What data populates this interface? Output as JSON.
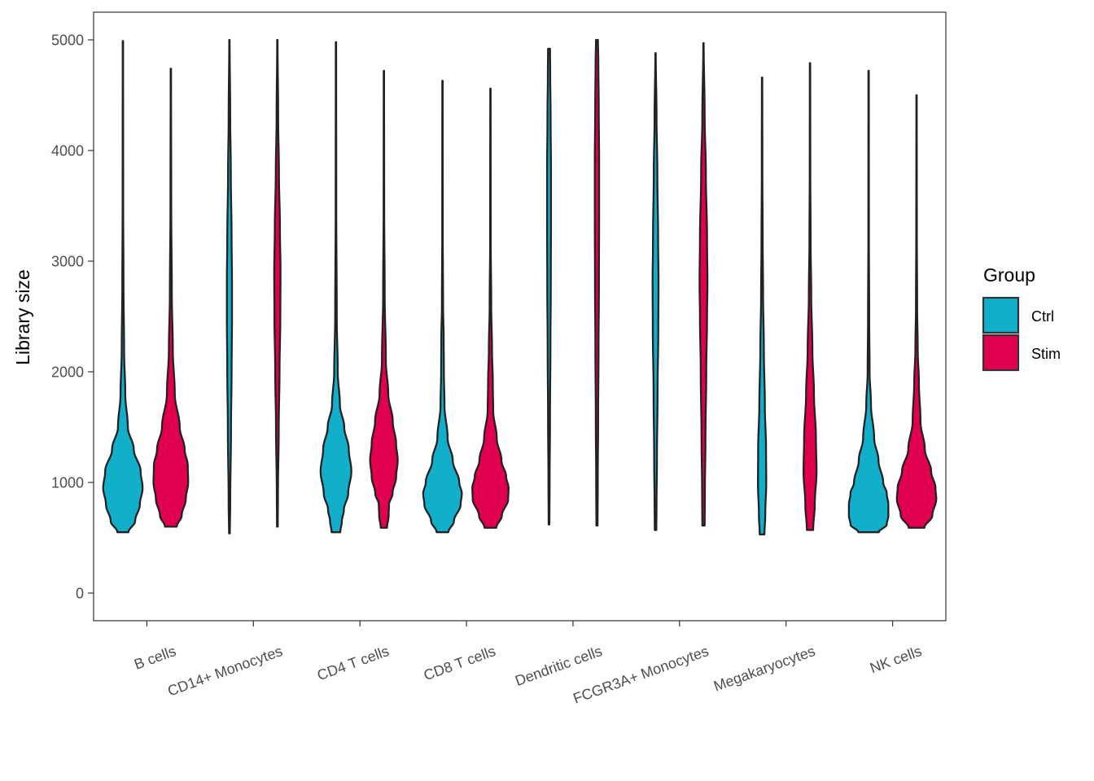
{
  "chart_data": {
    "type": "violin",
    "title": "",
    "xlabel": "",
    "ylabel": "Library size",
    "ylim": [
      -250,
      5250
    ],
    "yticks": [
      0,
      1000,
      2000,
      3000,
      4000,
      5000
    ],
    "grid": false,
    "legend": {
      "title": "Group",
      "position": "right",
      "entries": [
        "Ctrl",
        "Stim"
      ]
    },
    "colors": {
      "Ctrl": "#12afcb",
      "Stim": "#e0004f",
      "outline": "#222222"
    },
    "categories": [
      "B cells",
      "CD14+ Monocytes",
      "CD4 T cells",
      "CD8 T cells",
      "Dendritic cells",
      "FCGR3A+ Monocytes",
      "Megakaryocytes",
      "NK cells"
    ],
    "series": [
      {
        "name": "Ctrl",
        "violins": [
          {
            "min": 550,
            "max": 4990,
            "profile": [
              [
                550,
                0.28
              ],
              [
                650,
                0.62
              ],
              [
                800,
                0.86
              ],
              [
                950,
                1.0
              ],
              [
                1100,
                0.9
              ],
              [
                1300,
                0.55
              ],
              [
                1500,
                0.25
              ],
              [
                1800,
                0.12
              ],
              [
                2200,
                0.06
              ],
              [
                2800,
                0.03
              ],
              [
                3500,
                0.015
              ],
              [
                4990,
                0.01
              ]
            ]
          },
          {
            "min": 540,
            "max": 5000,
            "profile": [
              [
                540,
                0.02
              ],
              [
                800,
                0.04
              ],
              [
                1500,
                0.08
              ],
              [
                2000,
                0.11
              ],
              [
                2500,
                0.13
              ],
              [
                2800,
                0.13
              ],
              [
                3200,
                0.11
              ],
              [
                3800,
                0.07
              ],
              [
                4300,
                0.04
              ],
              [
                5000,
                0.01
              ]
            ]
          },
          {
            "min": 550,
            "max": 4980,
            "profile": [
              [
                550,
                0.22
              ],
              [
                650,
                0.3
              ],
              [
                750,
                0.4
              ],
              [
                900,
                0.62
              ],
              [
                1100,
                0.78
              ],
              [
                1300,
                0.65
              ],
              [
                1500,
                0.42
              ],
              [
                1700,
                0.2
              ],
              [
                2000,
                0.09
              ],
              [
                2500,
                0.04
              ],
              [
                3500,
                0.015
              ],
              [
                4980,
                0.01
              ]
            ]
          },
          {
            "min": 550,
            "max": 4630,
            "profile": [
              [
                550,
                0.3
              ],
              [
                650,
                0.58
              ],
              [
                800,
                0.92
              ],
              [
                900,
                0.98
              ],
              [
                1000,
                0.85
              ],
              [
                1200,
                0.52
              ],
              [
                1400,
                0.26
              ],
              [
                1700,
                0.1
              ],
              [
                2000,
                0.07
              ],
              [
                2300,
                0.06
              ],
              [
                2600,
                0.03
              ],
              [
                3200,
                0.015
              ],
              [
                4630,
                0.01
              ]
            ]
          },
          {
            "min": 620,
            "max": 4920,
            "profile": [
              [
                620,
                0.02
              ],
              [
                1000,
                0.03
              ],
              [
                1600,
                0.05
              ],
              [
                2200,
                0.07
              ],
              [
                2800,
                0.09
              ],
              [
                3400,
                0.1
              ],
              [
                3800,
                0.1
              ],
              [
                4300,
                0.08
              ],
              [
                4700,
                0.06
              ],
              [
                4920,
                0.05
              ]
            ]
          },
          {
            "min": 570,
            "max": 4880,
            "profile": [
              [
                570,
                0.04
              ],
              [
                800,
                0.05
              ],
              [
                1200,
                0.07
              ],
              [
                1800,
                0.1
              ],
              [
                2400,
                0.14
              ],
              [
                2800,
                0.15
              ],
              [
                3200,
                0.13
              ],
              [
                3800,
                0.09
              ],
              [
                4300,
                0.05
              ],
              [
                4880,
                0.01
              ]
            ]
          },
          {
            "min": 530,
            "max": 4660,
            "profile": [
              [
                530,
                0.12
              ],
              [
                700,
                0.16
              ],
              [
                1000,
                0.21
              ],
              [
                1300,
                0.2
              ],
              [
                1700,
                0.14
              ],
              [
                2200,
                0.09
              ],
              [
                2700,
                0.05
              ],
              [
                3200,
                0.03
              ],
              [
                3800,
                0.015
              ],
              [
                4660,
                0.01
              ]
            ]
          },
          {
            "min": 550,
            "max": 4720,
            "profile": [
              [
                550,
                0.52
              ],
              [
                620,
                0.92
              ],
              [
                700,
                1.0
              ],
              [
                800,
                1.0
              ],
              [
                900,
                0.92
              ],
              [
                1000,
                0.74
              ],
              [
                1200,
                0.5
              ],
              [
                1400,
                0.28
              ],
              [
                1700,
                0.12
              ],
              [
                2000,
                0.05
              ],
              [
                2500,
                0.03
              ],
              [
                3200,
                0.015
              ],
              [
                4720,
                0.01
              ]
            ]
          }
        ]
      },
      {
        "name": "Stim",
        "violins": [
          {
            "min": 600,
            "max": 4740,
            "profile": [
              [
                600,
                0.3
              ],
              [
                700,
                0.55
              ],
              [
                850,
                0.76
              ],
              [
                1000,
                0.88
              ],
              [
                1150,
                0.86
              ],
              [
                1300,
                0.7
              ],
              [
                1500,
                0.45
              ],
              [
                1800,
                0.2
              ],
              [
                2200,
                0.1
              ],
              [
                2700,
                0.05
              ],
              [
                3500,
                0.02
              ],
              [
                4740,
                0.01
              ]
            ]
          },
          {
            "min": 600,
            "max": 5000,
            "profile": [
              [
                600,
                0.02
              ],
              [
                900,
                0.03
              ],
              [
                1500,
                0.07
              ],
              [
                2000,
                0.11
              ],
              [
                2500,
                0.15
              ],
              [
                2900,
                0.16
              ],
              [
                3300,
                0.13
              ],
              [
                3800,
                0.08
              ],
              [
                4300,
                0.04
              ],
              [
                5000,
                0.01
              ]
            ]
          },
          {
            "min": 590,
            "max": 4720,
            "profile": [
              [
                590,
                0.16
              ],
              [
                700,
                0.24
              ],
              [
                800,
                0.26
              ],
              [
                900,
                0.44
              ],
              [
                1050,
                0.62
              ],
              [
                1200,
                0.7
              ],
              [
                1350,
                0.62
              ],
              [
                1550,
                0.45
              ],
              [
                1800,
                0.22
              ],
              [
                2100,
                0.1
              ],
              [
                2700,
                0.04
              ],
              [
                3500,
                0.015
              ],
              [
                4720,
                0.01
              ]
            ]
          },
          {
            "min": 590,
            "max": 4560,
            "profile": [
              [
                590,
                0.3
              ],
              [
                700,
                0.58
              ],
              [
                850,
                0.9
              ],
              [
                950,
                0.92
              ],
              [
                1050,
                0.8
              ],
              [
                1200,
                0.56
              ],
              [
                1400,
                0.32
              ],
              [
                1650,
                0.14
              ],
              [
                1900,
                0.12
              ],
              [
                2200,
                0.08
              ],
              [
                2600,
                0.04
              ],
              [
                3200,
                0.015
              ],
              [
                4560,
                0.01
              ]
            ]
          },
          {
            "min": 610,
            "max": 5000,
            "profile": [
              [
                610,
                0.03
              ],
              [
                1000,
                0.04
              ],
              [
                1600,
                0.06
              ],
              [
                2200,
                0.08
              ],
              [
                2800,
                0.1
              ],
              [
                3400,
                0.11
              ],
              [
                3900,
                0.11
              ],
              [
                4400,
                0.09
              ],
              [
                4800,
                0.07
              ],
              [
                5000,
                0.05
              ]
            ]
          },
          {
            "min": 610,
            "max": 4970,
            "profile": [
              [
                610,
                0.06
              ],
              [
                900,
                0.07
              ],
              [
                1400,
                0.1
              ],
              [
                2000,
                0.14
              ],
              [
                2500,
                0.18
              ],
              [
                2800,
                0.2
              ],
              [
                3200,
                0.18
              ],
              [
                3800,
                0.12
              ],
              [
                4300,
                0.06
              ],
              [
                4970,
                0.01
              ]
            ]
          },
          {
            "min": 570,
            "max": 4790,
            "profile": [
              [
                570,
                0.16
              ],
              [
                800,
                0.24
              ],
              [
                1100,
                0.33
              ],
              [
                1400,
                0.3
              ],
              [
                1800,
                0.2
              ],
              [
                2200,
                0.12
              ],
              [
                2700,
                0.06
              ],
              [
                3200,
                0.03
              ],
              [
                3800,
                0.015
              ],
              [
                4790,
                0.01
              ]
            ]
          },
          {
            "min": 590,
            "max": 4500,
            "profile": [
              [
                590,
                0.4
              ],
              [
                700,
                0.8
              ],
              [
                850,
                1.0
              ],
              [
                950,
                0.96
              ],
              [
                1100,
                0.74
              ],
              [
                1300,
                0.42
              ],
              [
                1550,
                0.2
              ],
              [
                1900,
                0.12
              ],
              [
                2200,
                0.06
              ],
              [
                2600,
                0.03
              ],
              [
                3300,
                0.015
              ],
              [
                4500,
                0.01
              ]
            ]
          }
        ]
      }
    ]
  }
}
